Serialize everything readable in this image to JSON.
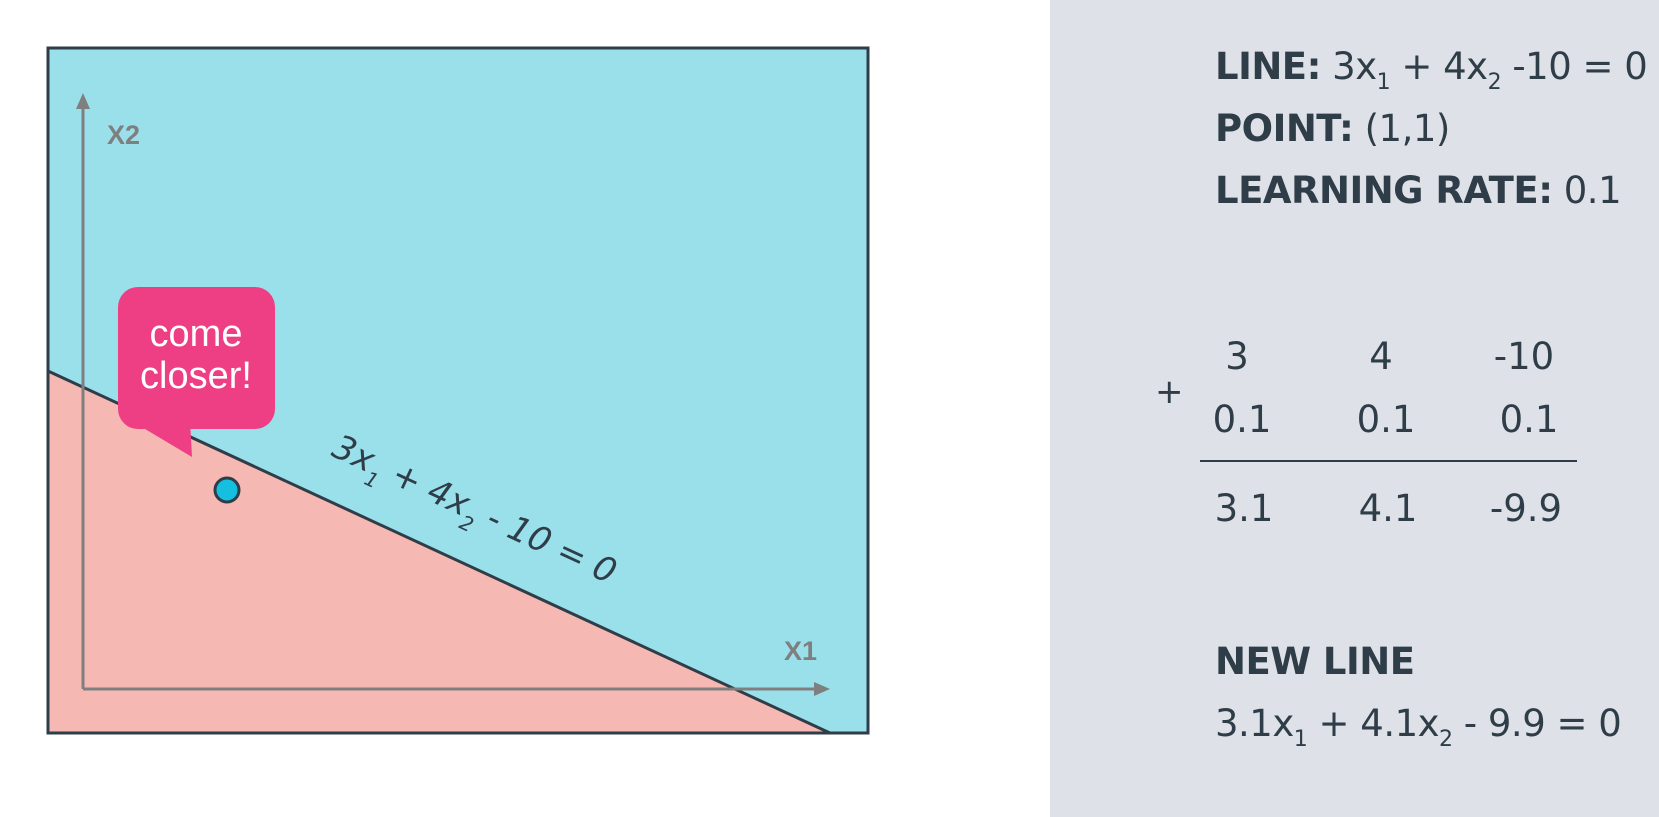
{
  "colors": {
    "above_region": "#99e0eb",
    "below_region": "#f6b8b3",
    "border": "#2f3d48",
    "axis": "#7f7f7f",
    "point": "#14bfe0",
    "bubble": "#ee3f84",
    "panel_bg": "#dee2e8"
  },
  "plot": {
    "x_axis_label": "X1",
    "y_axis_label": "X2",
    "line_label": {
      "coef1": "3x",
      "sub1": "1",
      "mid": " + 4x",
      "sub2": "2",
      "tail": " - 10 = 0"
    },
    "bubble_text": [
      "come",
      "closer!"
    ],
    "point_icon": "circle"
  },
  "panel": {
    "line": {
      "label": "LINE:",
      "prefix": " 3x",
      "sub1": "1",
      "mid": " + 4x",
      "sub2": "2",
      "tail": " -10 = 0"
    },
    "point": {
      "label": "POINT:",
      "value": " (1,1)"
    },
    "learning_rate": {
      "label": "LEARNING RATE:",
      "value": " 0.1"
    },
    "calc": {
      "operator": "+",
      "row1": [
        "3",
        "4",
        "-10"
      ],
      "row2": [
        "0.1",
        "0.1",
        "0.1"
      ],
      "result": [
        "3.1",
        "4.1",
        "-9.9"
      ]
    },
    "new_line": {
      "label": "NEW LINE",
      "prefix": "3.1x",
      "sub1": "1",
      "mid": " + 4.1x",
      "sub2": "2",
      "tail": " - 9.9 = 0"
    }
  }
}
